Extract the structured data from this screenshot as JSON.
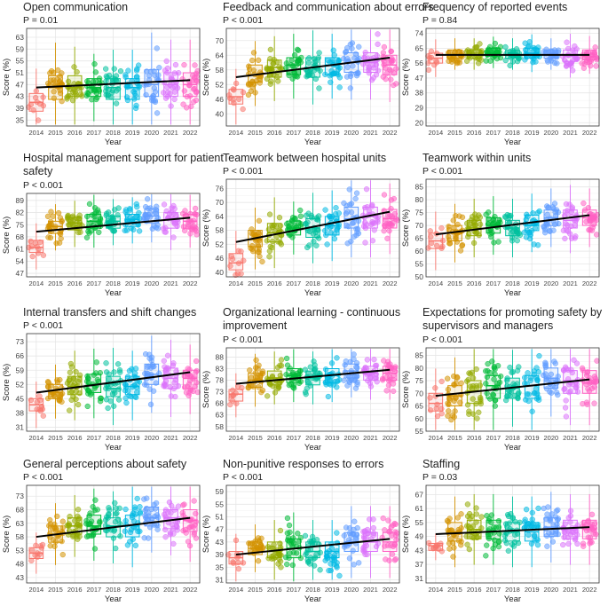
{
  "figure": {
    "ylabel": "Score (%)",
    "xlabel": "Year"
  },
  "chart_data": [
    {
      "type": "box",
      "title": [
        "Open communication"
      ],
      "p": "P = 0.01",
      "yticks": [
        35,
        39,
        43,
        47,
        51,
        55,
        59,
        63
      ],
      "ylim": [
        33,
        66
      ],
      "medians": [
        41,
        46,
        46,
        46,
        46,
        46,
        47,
        47,
        47
      ],
      "q1": [
        38,
        42,
        43,
        43,
        42,
        42,
        43,
        43,
        43
      ],
      "q3": [
        44,
        50,
        50,
        49,
        49,
        49,
        52,
        51,
        51
      ],
      "trend": [
        46,
        48.5
      ],
      "x": [
        "2014",
        "2015",
        "2016",
        "2017",
        "2018",
        "2019",
        "2020",
        "2021",
        "2022"
      ]
    },
    {
      "type": "box",
      "title": [
        "Feedback and communication about errors"
      ],
      "p": "P < 0.001",
      "yticks": [
        40,
        46,
        52,
        58,
        64,
        70
      ],
      "ylim": [
        35,
        75
      ],
      "medians": [
        47,
        56,
        59,
        60,
        59,
        60,
        61,
        61,
        60
      ],
      "q1": [
        44,
        53,
        55,
        56,
        55,
        56,
        57,
        57,
        56
      ],
      "q3": [
        50,
        60,
        62,
        63,
        63,
        63,
        65,
        65,
        64
      ],
      "trend": [
        55,
        63
      ],
      "x": [
        "2014",
        "2015",
        "2016",
        "2017",
        "2018",
        "2019",
        "2020",
        "2021",
        "2022"
      ]
    },
    {
      "type": "box",
      "title": [
        "Frequency of reported events"
      ],
      "p": "P = 0.84",
      "yticks": [
        20,
        29,
        38,
        47,
        56,
        65,
        74
      ],
      "ylim": [
        18,
        77
      ],
      "medians": [
        59,
        61,
        61,
        62,
        61,
        62,
        61,
        60,
        60
      ],
      "q1": [
        56,
        59,
        59,
        60,
        59,
        59,
        59,
        57,
        58
      ],
      "q3": [
        62,
        64,
        64,
        65,
        64,
        65,
        64,
        64,
        64
      ],
      "trend": [
        61,
        61
      ],
      "x": [
        "2014",
        "2015",
        "2016",
        "2017",
        "2018",
        "2019",
        "2020",
        "2021",
        "2022"
      ]
    },
    {
      "type": "box",
      "title": [
        "Hospital management support for patient",
        "safety"
      ],
      "p": "P < 0.001",
      "yticks": [
        47,
        54,
        61,
        68,
        75,
        82,
        89
      ],
      "ylim": [
        45,
        93
      ],
      "medians": [
        62,
        74,
        76,
        77,
        77,
        78,
        80,
        78,
        77
      ],
      "q1": [
        59,
        70,
        72,
        73,
        73,
        74,
        76,
        73,
        73
      ],
      "q3": [
        66,
        77,
        79,
        81,
        80,
        81,
        84,
        82,
        81
      ],
      "trend": [
        71,
        79
      ],
      "x": [
        "2014",
        "2015",
        "2016",
        "2017",
        "2018",
        "2019",
        "2020",
        "2021",
        "2022"
      ]
    },
    {
      "type": "box",
      "title": [
        "Teamwork between hospital units"
      ],
      "p": "P < 0.001",
      "yticks": [
        40,
        46,
        52,
        58,
        64,
        70,
        76
      ],
      "ylim": [
        38,
        80
      ],
      "medians": [
        44,
        54,
        57,
        59,
        59,
        60,
        63,
        64,
        63
      ],
      "q1": [
        41,
        51,
        53,
        56,
        55,
        56,
        59,
        59,
        59
      ],
      "q3": [
        48,
        58,
        61,
        62,
        63,
        64,
        68,
        68,
        67
      ],
      "trend": [
        53,
        66
      ],
      "x": [
        "2014",
        "2015",
        "2016",
        "2017",
        "2018",
        "2019",
        "2020",
        "2021",
        "2022"
      ]
    },
    {
      "type": "box",
      "title": [
        "Teamwork within units"
      ],
      "p": "P < 0.001",
      "yticks": [
        50,
        55,
        60,
        65,
        70,
        75,
        80,
        85
      ],
      "ylim": [
        50,
        88
      ],
      "medians": [
        64,
        67,
        69,
        70,
        69,
        70,
        73,
        72,
        73
      ],
      "q1": [
        61,
        64,
        66,
        67,
        66,
        68,
        70,
        69,
        70
      ],
      "q3": [
        67,
        70,
        72,
        73,
        72,
        74,
        76,
        76,
        76
      ],
      "trend": [
        66.5,
        74
      ],
      "x": [
        "2014",
        "2015",
        "2016",
        "2017",
        "2018",
        "2019",
        "2020",
        "2021",
        "2022"
      ]
    },
    {
      "type": "box",
      "title": [
        "Internal transfers and shift changes"
      ],
      "p": "P < 0.001",
      "yticks": [
        31,
        38,
        45,
        52,
        59,
        66,
        73
      ],
      "ylim": [
        29,
        77
      ],
      "medians": [
        42,
        48,
        51,
        52,
        50,
        51,
        57,
        55,
        55
      ],
      "q1": [
        39,
        45,
        47,
        48,
        46,
        47,
        52,
        50,
        50
      ],
      "q3": [
        45,
        52,
        56,
        57,
        56,
        56,
        62,
        60,
        59
      ],
      "trend": [
        48,
        58
      ],
      "x": [
        "2014",
        "2015",
        "2016",
        "2017",
        "2018",
        "2019",
        "2020",
        "2021",
        "2022"
      ]
    },
    {
      "type": "box",
      "title": [
        " Organizational learning - continuous",
        "improvement"
      ],
      "p": "P < 0.001",
      "yticks": [
        58,
        63,
        68,
        73,
        78,
        83,
        88
      ],
      "ylim": [
        56,
        92
      ],
      "medians": [
        72,
        78,
        79,
        80,
        79,
        80,
        82,
        81,
        81
      ],
      "q1": [
        69,
        75,
        76,
        77,
        76,
        77,
        79,
        78,
        78
      ],
      "q3": [
        74,
        81,
        82,
        83,
        82,
        83,
        85,
        84,
        84
      ],
      "trend": [
        76.5,
        82.5
      ],
      "x": [
        "2014",
        "2015",
        "2016",
        "2017",
        "2018",
        "2019",
        "2020",
        "2021",
        "2022"
      ]
    },
    {
      "type": "box",
      "title": [
        "Expectations for promoting safety by",
        "supervisors and managers"
      ],
      "p": "P < 0.001",
      "yticks": [
        55,
        60,
        65,
        70,
        75,
        80,
        85
      ],
      "ylim": [
        55,
        88
      ],
      "medians": [
        66,
        69,
        71,
        73,
        72,
        73,
        76,
        75,
        74
      ],
      "q1": [
        63,
        65,
        66,
        68,
        68,
        68,
        72,
        70,
        70
      ],
      "q3": [
        70,
        73,
        75,
        77,
        76,
        77,
        80,
        79,
        79
      ],
      "trend": [
        69,
        75.5
      ],
      "x": [
        "2014",
        "2015",
        "2016",
        "2017",
        "2018",
        "2019",
        "2020",
        "2021",
        "2022"
      ]
    },
    {
      "type": "box",
      "title": [
        "General perceptions about safety"
      ],
      "p": "P < 0.001",
      "yticks": [
        43,
        48,
        53,
        58,
        63,
        68,
        73
      ],
      "ylim": [
        41,
        77
      ],
      "medians": [
        52,
        59,
        62,
        62,
        62,
        62,
        65,
        65,
        64
      ],
      "q1": [
        50,
        56,
        59,
        59,
        58,
        58,
        62,
        61,
        60
      ],
      "q3": [
        54,
        62,
        65,
        66,
        65,
        66,
        69,
        68,
        68
      ],
      "trend": [
        58,
        65
      ],
      "x": [
        "2014",
        "2015",
        "2016",
        "2017",
        "2018",
        "2019",
        "2020",
        "2021",
        "2022"
      ]
    },
    {
      "type": "box",
      "title": [
        "Non-punitive responses to errors"
      ],
      "p": "P < 0.001",
      "yticks": [
        31,
        35,
        39,
        43,
        47,
        51,
        55,
        59
      ],
      "ylim": [
        30,
        61
      ],
      "medians": [
        38,
        41,
        40,
        41,
        40,
        40,
        43,
        43,
        43
      ],
      "q1": [
        36,
        39,
        38,
        38,
        38,
        38,
        40,
        40,
        40
      ],
      "q3": [
        40,
        43,
        43,
        44,
        43,
        43,
        46,
        46,
        46
      ],
      "trend": [
        39,
        44
      ],
      "x": [
        "2014",
        "2015",
        "2016",
        "2017",
        "2018",
        "2019",
        "2020",
        "2021",
        "2022"
      ]
    },
    {
      "type": "box",
      "title": [
        "Staffing"
      ],
      "p": "P = 0.03",
      "yticks": [
        31,
        37,
        43,
        49,
        55,
        61,
        67
      ],
      "ylim": [
        29,
        71
      ],
      "medians": [
        45,
        51,
        52,
        51,
        51,
        51,
        53,
        52,
        52
      ],
      "q1": [
        43,
        47,
        48,
        48,
        47,
        47,
        49,
        48,
        48
      ],
      "q3": [
        46,
        55,
        56,
        56,
        55,
        55,
        57,
        56,
        56
      ],
      "trend": [
        50,
        53
      ],
      "x": [
        "2014",
        "2015",
        "2016",
        "2017",
        "2018",
        "2019",
        "2020",
        "2021",
        "2022"
      ]
    }
  ],
  "colors": [
    "#f8766d",
    "#d39200",
    "#93aa00",
    "#00ba38",
    "#00c19f",
    "#00b9e3",
    "#619cff",
    "#db72fb",
    "#ff61c3"
  ]
}
